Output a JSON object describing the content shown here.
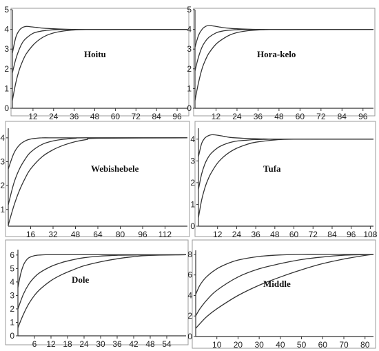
{
  "chart_data": [
    {
      "type": "line",
      "title": "Hoitu",
      "ylim": [
        0,
        5
      ],
      "xlim": [
        0,
        102
      ],
      "yticks": [
        0,
        1,
        2,
        3,
        4,
        5
      ],
      "xticks": [
        12,
        24,
        36,
        48,
        60,
        72,
        84,
        96
      ],
      "series": [
        {
          "x": [
            0,
            2,
            4,
            6,
            8,
            10,
            14,
            18,
            24,
            30,
            36,
            48,
            60,
            102
          ],
          "y": [
            2.8,
            3.6,
            3.95,
            4.1,
            4.15,
            4.14,
            4.1,
            4.06,
            4.03,
            4.01,
            4.0,
            4.0,
            4.0,
            4.0
          ]
        },
        {
          "x": [
            0,
            2,
            4,
            6,
            8,
            12,
            16,
            20,
            24,
            30,
            36,
            48,
            102
          ],
          "y": [
            1.8,
            2.5,
            3.0,
            3.35,
            3.55,
            3.8,
            3.9,
            3.95,
            3.98,
            3.99,
            4.0,
            4.0,
            4.0
          ]
        },
        {
          "x": [
            0,
            2,
            4,
            6,
            8,
            12,
            16,
            20,
            24,
            30,
            36,
            42,
            48,
            102
          ],
          "y": [
            0.4,
            1.3,
            1.95,
            2.4,
            2.75,
            3.2,
            3.5,
            3.7,
            3.82,
            3.92,
            3.97,
            3.99,
            4.0,
            4.0
          ]
        }
      ]
    },
    {
      "type": "line",
      "title": "Hora-kelo",
      "ylim": [
        0,
        5
      ],
      "xlim": [
        0,
        102
      ],
      "yticks": [
        0,
        1,
        2,
        3,
        4,
        5
      ],
      "xticks": [
        12,
        24,
        36,
        48,
        60,
        72,
        84,
        96
      ],
      "series": [
        {
          "x": [
            0,
            2,
            4,
            6,
            8,
            10,
            14,
            18,
            24,
            30,
            36,
            48,
            60,
            102
          ],
          "y": [
            3.1,
            3.7,
            4.0,
            4.15,
            4.2,
            4.18,
            4.12,
            4.07,
            4.03,
            4.01,
            4.0,
            4.0,
            4.0,
            4.0
          ]
        },
        {
          "x": [
            0,
            2,
            4,
            6,
            8,
            12,
            16,
            20,
            24,
            30,
            36,
            48,
            102
          ],
          "y": [
            1.9,
            2.6,
            3.1,
            3.4,
            3.6,
            3.82,
            3.92,
            3.96,
            3.98,
            3.99,
            4.0,
            4.0,
            4.0
          ]
        },
        {
          "x": [
            0,
            2,
            4,
            6,
            8,
            12,
            16,
            20,
            24,
            30,
            36,
            42,
            48,
            102
          ],
          "y": [
            0.4,
            1.3,
            2.0,
            2.45,
            2.8,
            3.25,
            3.52,
            3.72,
            3.84,
            3.93,
            3.97,
            3.99,
            4.0,
            4.0
          ]
        }
      ]
    },
    {
      "type": "line",
      "title": "Webishebele",
      "ylim": [
        0.3,
        4.4
      ],
      "xlim": [
        0,
        128
      ],
      "yticks": [
        1,
        2,
        3,
        4
      ],
      "xticks": [
        16,
        32,
        48,
        64,
        80,
        96,
        112
      ],
      "series": [
        {
          "x": [
            0,
            4,
            8,
            12,
            16,
            20,
            24,
            32,
            40,
            48,
            128
          ],
          "y": [
            2.7,
            3.35,
            3.7,
            3.87,
            3.95,
            3.98,
            4.0,
            4.0,
            4.0,
            4.0,
            4.0
          ]
        },
        {
          "x": [
            0,
            4,
            8,
            12,
            16,
            24,
            32,
            40,
            48,
            56,
            128
          ],
          "y": [
            1.2,
            2.1,
            2.7,
            3.1,
            3.4,
            3.72,
            3.87,
            3.94,
            3.98,
            4.0,
            4.0
          ]
        },
        {
          "x": [
            0,
            4,
            8,
            12,
            16,
            24,
            32,
            40,
            48,
            56,
            64,
            128
          ],
          "y": [
            0.35,
            1.15,
            1.8,
            2.3,
            2.7,
            3.2,
            3.5,
            3.7,
            3.84,
            3.93,
            3.98,
            4.0
          ]
        }
      ]
    },
    {
      "type": "line",
      "title": "Tufa",
      "ylim": [
        0,
        4.5
      ],
      "xlim": [
        0,
        110
      ],
      "yticks": [
        0,
        1,
        2,
        3,
        4
      ],
      "xticks": [
        12,
        24,
        36,
        48,
        60,
        72,
        84,
        96,
        108
      ],
      "series": [
        {
          "x": [
            0,
            2,
            4,
            6,
            8,
            10,
            12,
            16,
            20,
            28,
            36,
            48,
            60,
            110
          ],
          "y": [
            3.2,
            3.8,
            4.05,
            4.15,
            4.2,
            4.2,
            4.18,
            4.13,
            4.08,
            4.04,
            4.02,
            4.0,
            4.0,
            4.0
          ]
        },
        {
          "x": [
            0,
            2,
            4,
            6,
            8,
            12,
            16,
            20,
            24,
            30,
            36,
            48,
            60,
            110
          ],
          "y": [
            1.7,
            2.4,
            2.85,
            3.15,
            3.35,
            3.6,
            3.75,
            3.85,
            3.91,
            3.95,
            3.98,
            4.0,
            4.0,
            4.0
          ]
        },
        {
          "x": [
            0,
            2,
            4,
            6,
            8,
            12,
            16,
            20,
            24,
            30,
            36,
            48,
            60,
            110
          ],
          "y": [
            0.4,
            1.2,
            1.75,
            2.15,
            2.45,
            2.9,
            3.2,
            3.42,
            3.58,
            3.75,
            3.86,
            3.96,
            4.0,
            4.0
          ]
        }
      ]
    },
    {
      "type": "line",
      "title": "Dole",
      "ylim": [
        0,
        6.4
      ],
      "xlim": [
        0,
        61
      ],
      "yticks": [
        0,
        1,
        2,
        3,
        4,
        5,
        6
      ],
      "xticks": [
        6,
        12,
        18,
        24,
        30,
        36,
        42,
        48,
        54
      ],
      "series": [
        {
          "x": [
            0,
            1,
            2,
            3,
            4,
            6,
            8,
            10,
            12,
            16,
            20,
            61
          ],
          "y": [
            3.6,
            4.6,
            5.25,
            5.6,
            5.8,
            5.95,
            6.0,
            6.02,
            6.02,
            6.02,
            6.02,
            6.02
          ]
        },
        {
          "x": [
            0,
            2,
            4,
            6,
            8,
            12,
            16,
            20,
            24,
            30,
            36,
            42,
            61
          ],
          "y": [
            2.0,
            3.1,
            3.85,
            4.35,
            4.7,
            5.15,
            5.45,
            5.65,
            5.8,
            5.92,
            5.98,
            6.0,
            6.02
          ]
        },
        {
          "x": [
            0,
            2,
            4,
            6,
            8,
            12,
            16,
            20,
            24,
            30,
            36,
            42,
            48,
            61
          ],
          "y": [
            0.6,
            1.6,
            2.4,
            3.0,
            3.45,
            4.1,
            4.55,
            4.9,
            5.2,
            5.5,
            5.72,
            5.88,
            5.97,
            6.02
          ]
        }
      ]
    },
    {
      "type": "line",
      "title": "Middle",
      "ylim": [
        0,
        8.4
      ],
      "xlim": [
        0,
        84
      ],
      "yticks": [
        0,
        2,
        4,
        6,
        8
      ],
      "xticks": [
        10,
        20,
        30,
        40,
        50,
        60,
        70,
        80
      ],
      "series": [
        {
          "x": [
            0,
            2,
            5,
            10,
            15,
            20,
            30,
            40,
            50,
            60,
            84
          ],
          "y": [
            4.1,
            5.0,
            5.8,
            6.6,
            7.1,
            7.45,
            7.8,
            7.95,
            8.0,
            8.0,
            8.0
          ]
        },
        {
          "x": [
            0,
            2,
            5,
            10,
            20,
            30,
            40,
            50,
            60,
            70,
            84
          ],
          "y": [
            2.0,
            2.7,
            3.5,
            4.5,
            5.8,
            6.6,
            7.1,
            7.5,
            7.75,
            7.92,
            8.0
          ]
        },
        {
          "x": [
            0,
            2,
            5,
            10,
            20,
            30,
            40,
            50,
            60,
            70,
            80,
            84
          ],
          "y": [
            0.8,
            1.25,
            1.9,
            2.7,
            4.0,
            5.0,
            5.8,
            6.5,
            7.1,
            7.55,
            7.9,
            8.0
          ]
        }
      ]
    }
  ]
}
